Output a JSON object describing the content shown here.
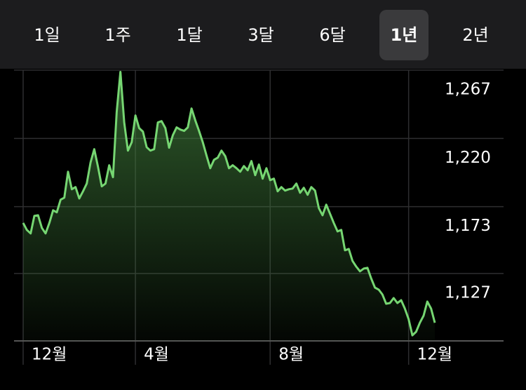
{
  "tabs": [
    {
      "label": "1일"
    },
    {
      "label": "1주"
    },
    {
      "label": "1달"
    },
    {
      "label": "3달"
    },
    {
      "label": "6달"
    },
    {
      "label": "1년",
      "selected": true
    },
    {
      "label": "2년"
    }
  ],
  "chart_data": {
    "type": "line",
    "x": [
      0,
      1,
      2,
      3,
      4,
      5,
      6,
      7,
      8,
      9,
      10,
      11,
      12,
      13,
      14,
      15,
      16,
      17,
      18,
      19,
      20,
      21,
      22,
      23,
      24,
      25,
      26,
      27,
      28,
      29,
      30,
      31,
      32,
      33,
      34,
      35,
      36,
      37,
      38,
      39,
      40,
      41,
      42,
      43,
      44,
      45,
      46,
      47,
      48,
      49,
      50,
      51,
      52,
      53,
      54,
      55,
      56,
      57,
      58,
      59,
      60,
      61,
      62,
      63,
      64,
      65,
      66,
      67,
      68,
      69,
      70,
      71,
      72,
      73,
      74,
      75,
      76,
      77,
      78,
      79,
      80,
      81,
      82,
      83,
      84,
      85,
      86,
      87,
      88,
      89,
      90,
      91,
      92,
      93,
      94,
      95,
      96,
      97,
      98,
      99,
      100,
      101,
      102,
      103,
      104,
      105,
      106,
      107,
      108,
      109,
      110
    ],
    "series": [
      {
        "color": "#76d672",
        "values": [
          1161.8,
          1157.0,
          1154.6,
          1166.7,
          1167.1,
          1158.4,
          1154.6,
          1161.8,
          1170.5,
          1169.1,
          1177.8,
          1179.2,
          1197.1,
          1185.0,
          1186.5,
          1178.7,
          1183.6,
          1188.9,
          1203.4,
          1212.6,
          1200.5,
          1187.0,
          1188.9,
          1201.5,
          1193.3,
          1238.2,
          1265.8,
          1231.0,
          1211.6,
          1217.4,
          1235.8,
          1227.1,
          1224.7,
          1214.0,
          1211.6,
          1212.6,
          1231.0,
          1231.9,
          1227.1,
          1213.6,
          1222.3,
          1227.6,
          1226.1,
          1225.2,
          1227.6,
          1240.6,
          1232.4,
          1225.2,
          1217.4,
          1208.2,
          1199.5,
          1205.3,
          1206.8,
          1211.6,
          1207.8,
          1199.5,
          1201.5,
          1199.5,
          1197.1,
          1201.0,
          1198.1,
          1204.4,
          1194.7,
          1202.0,
          1192.3,
          1199.5,
          1191.3,
          1192.3,
          1183.6,
          1186.5,
          1184.1,
          1185.0,
          1185.5,
          1188.9,
          1182.6,
          1186.0,
          1181.2,
          1186.5,
          1184.1,
          1172.0,
          1167.1,
          1174.4,
          1168.1,
          1161.8,
          1156.0,
          1157.0,
          1143.0,
          1143.9,
          1135.7,
          1131.8,
          1128.5,
          1130.4,
          1130.9,
          1123.6,
          1117.3,
          1115.9,
          1112.5,
          1106.2,
          1106.7,
          1110.1,
          1106.7,
          1108.6,
          1102.8,
          1095.6,
          1084.4,
          1086.9,
          1093.1,
          1098.0,
          1107.7,
          1102.8,
          1093.1
        ]
      }
    ],
    "xlim": [
      0,
      110
    ],
    "xticks": [
      {
        "value": 0,
        "label": "12월"
      },
      {
        "value": 30,
        "label": "4월"
      },
      {
        "value": 66,
        "label": "8월"
      },
      {
        "value": 103,
        "label": "12월"
      }
    ],
    "ylim": [
      1080.6,
      1267
    ],
    "yticks": [
      {
        "value": 1127,
        "label": "1,127"
      },
      {
        "value": 1173,
        "label": "1,173"
      },
      {
        "value": 1220,
        "label": "1,220"
      },
      {
        "value": 1267,
        "label": "1,267"
      }
    ],
    "grid": true
  }
}
